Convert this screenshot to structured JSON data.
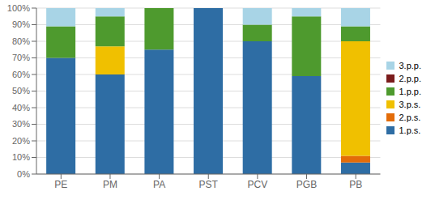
{
  "chart_data": {
    "type": "bar",
    "stacked": true,
    "categories": [
      "PE",
      "PM",
      "PA",
      "PST",
      "PCV",
      "PGB",
      "PB"
    ],
    "series": [
      {
        "name": "1.p.s.",
        "color": "#2E6DA4",
        "values": [
          70,
          60,
          75,
          100,
          80,
          59,
          7
        ]
      },
      {
        "name": "2.p.s.",
        "color": "#E36C09",
        "values": [
          0,
          0,
          0,
          0,
          0,
          0,
          4
        ]
      },
      {
        "name": "3.p.s.",
        "color": "#F0C000",
        "values": [
          0,
          17,
          0,
          0,
          0,
          0,
          69
        ]
      },
      {
        "name": "1.p.p.",
        "color": "#4E9A2E",
        "values": [
          19,
          18,
          25,
          0,
          10,
          36,
          9
        ]
      },
      {
        "name": "2.p.p.",
        "color": "#7B1C1C",
        "values": [
          0,
          0,
          0,
          0,
          0,
          0,
          0
        ]
      },
      {
        "name": "3.p.p.",
        "color": "#A8D4E6",
        "values": [
          11,
          5,
          0,
          0,
          10,
          5,
          11
        ]
      }
    ],
    "ylim": [
      0,
      100
    ],
    "yticks": [
      {
        "value": 0,
        "label": "0%"
      },
      {
        "value": 10,
        "label": "10%"
      },
      {
        "value": 20,
        "label": "20%"
      },
      {
        "value": 30,
        "label": "30%"
      },
      {
        "value": 40,
        "label": "40%"
      },
      {
        "value": 50,
        "label": "50%"
      },
      {
        "value": 60,
        "label": "60%"
      },
      {
        "value": 70,
        "label": "70%"
      },
      {
        "value": 80,
        "label": "80%"
      },
      {
        "value": 90,
        "label": "90%"
      },
      {
        "value": 100,
        "label": "100%"
      }
    ],
    "grid": true,
    "legend": "right"
  }
}
